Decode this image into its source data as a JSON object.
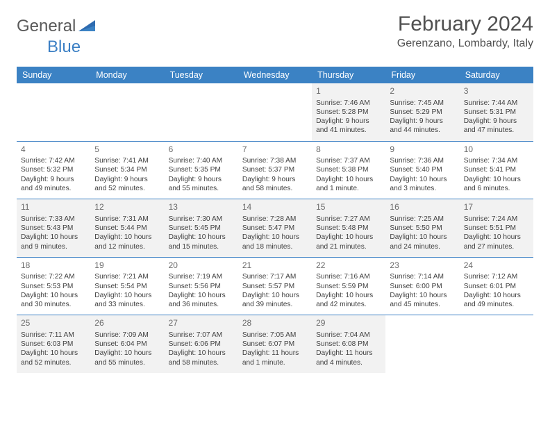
{
  "brand": {
    "part1": "General",
    "part2": "Blue"
  },
  "title": "February 2024",
  "location": "Gerenzano, Lombardy, Italy",
  "colors": {
    "header_bg": "#3b82c4",
    "header_text": "#ffffff",
    "divider": "#3b7fc4",
    "text": "#404040",
    "shade": "#f2f2f2"
  },
  "daynames": [
    "Sunday",
    "Monday",
    "Tuesday",
    "Wednesday",
    "Thursday",
    "Friday",
    "Saturday"
  ],
  "weeks": [
    [
      null,
      null,
      null,
      null,
      {
        "n": "1",
        "sr": "Sunrise: 7:46 AM",
        "ss": "Sunset: 5:28 PM",
        "dl": "Daylight: 9 hours and 41 minutes."
      },
      {
        "n": "2",
        "sr": "Sunrise: 7:45 AM",
        "ss": "Sunset: 5:29 PM",
        "dl": "Daylight: 9 hours and 44 minutes."
      },
      {
        "n": "3",
        "sr": "Sunrise: 7:44 AM",
        "ss": "Sunset: 5:31 PM",
        "dl": "Daylight: 9 hours and 47 minutes."
      }
    ],
    [
      {
        "n": "4",
        "sr": "Sunrise: 7:42 AM",
        "ss": "Sunset: 5:32 PM",
        "dl": "Daylight: 9 hours and 49 minutes."
      },
      {
        "n": "5",
        "sr": "Sunrise: 7:41 AM",
        "ss": "Sunset: 5:34 PM",
        "dl": "Daylight: 9 hours and 52 minutes."
      },
      {
        "n": "6",
        "sr": "Sunrise: 7:40 AM",
        "ss": "Sunset: 5:35 PM",
        "dl": "Daylight: 9 hours and 55 minutes."
      },
      {
        "n": "7",
        "sr": "Sunrise: 7:38 AM",
        "ss": "Sunset: 5:37 PM",
        "dl": "Daylight: 9 hours and 58 minutes."
      },
      {
        "n": "8",
        "sr": "Sunrise: 7:37 AM",
        "ss": "Sunset: 5:38 PM",
        "dl": "Daylight: 10 hours and 1 minute."
      },
      {
        "n": "9",
        "sr": "Sunrise: 7:36 AM",
        "ss": "Sunset: 5:40 PM",
        "dl": "Daylight: 10 hours and 3 minutes."
      },
      {
        "n": "10",
        "sr": "Sunrise: 7:34 AM",
        "ss": "Sunset: 5:41 PM",
        "dl": "Daylight: 10 hours and 6 minutes."
      }
    ],
    [
      {
        "n": "11",
        "sr": "Sunrise: 7:33 AM",
        "ss": "Sunset: 5:43 PM",
        "dl": "Daylight: 10 hours and 9 minutes."
      },
      {
        "n": "12",
        "sr": "Sunrise: 7:31 AM",
        "ss": "Sunset: 5:44 PM",
        "dl": "Daylight: 10 hours and 12 minutes."
      },
      {
        "n": "13",
        "sr": "Sunrise: 7:30 AM",
        "ss": "Sunset: 5:45 PM",
        "dl": "Daylight: 10 hours and 15 minutes."
      },
      {
        "n": "14",
        "sr": "Sunrise: 7:28 AM",
        "ss": "Sunset: 5:47 PM",
        "dl": "Daylight: 10 hours and 18 minutes."
      },
      {
        "n": "15",
        "sr": "Sunrise: 7:27 AM",
        "ss": "Sunset: 5:48 PM",
        "dl": "Daylight: 10 hours and 21 minutes."
      },
      {
        "n": "16",
        "sr": "Sunrise: 7:25 AM",
        "ss": "Sunset: 5:50 PM",
        "dl": "Daylight: 10 hours and 24 minutes."
      },
      {
        "n": "17",
        "sr": "Sunrise: 7:24 AM",
        "ss": "Sunset: 5:51 PM",
        "dl": "Daylight: 10 hours and 27 minutes."
      }
    ],
    [
      {
        "n": "18",
        "sr": "Sunrise: 7:22 AM",
        "ss": "Sunset: 5:53 PM",
        "dl": "Daylight: 10 hours and 30 minutes."
      },
      {
        "n": "19",
        "sr": "Sunrise: 7:21 AM",
        "ss": "Sunset: 5:54 PM",
        "dl": "Daylight: 10 hours and 33 minutes."
      },
      {
        "n": "20",
        "sr": "Sunrise: 7:19 AM",
        "ss": "Sunset: 5:56 PM",
        "dl": "Daylight: 10 hours and 36 minutes."
      },
      {
        "n": "21",
        "sr": "Sunrise: 7:17 AM",
        "ss": "Sunset: 5:57 PM",
        "dl": "Daylight: 10 hours and 39 minutes."
      },
      {
        "n": "22",
        "sr": "Sunrise: 7:16 AM",
        "ss": "Sunset: 5:59 PM",
        "dl": "Daylight: 10 hours and 42 minutes."
      },
      {
        "n": "23",
        "sr": "Sunrise: 7:14 AM",
        "ss": "Sunset: 6:00 PM",
        "dl": "Daylight: 10 hours and 45 minutes."
      },
      {
        "n": "24",
        "sr": "Sunrise: 7:12 AM",
        "ss": "Sunset: 6:01 PM",
        "dl": "Daylight: 10 hours and 49 minutes."
      }
    ],
    [
      {
        "n": "25",
        "sr": "Sunrise: 7:11 AM",
        "ss": "Sunset: 6:03 PM",
        "dl": "Daylight: 10 hours and 52 minutes."
      },
      {
        "n": "26",
        "sr": "Sunrise: 7:09 AM",
        "ss": "Sunset: 6:04 PM",
        "dl": "Daylight: 10 hours and 55 minutes."
      },
      {
        "n": "27",
        "sr": "Sunrise: 7:07 AM",
        "ss": "Sunset: 6:06 PM",
        "dl": "Daylight: 10 hours and 58 minutes."
      },
      {
        "n": "28",
        "sr": "Sunrise: 7:05 AM",
        "ss": "Sunset: 6:07 PM",
        "dl": "Daylight: 11 hours and 1 minute."
      },
      {
        "n": "29",
        "sr": "Sunrise: 7:04 AM",
        "ss": "Sunset: 6:08 PM",
        "dl": "Daylight: 11 hours and 4 minutes."
      },
      null,
      null
    ]
  ]
}
